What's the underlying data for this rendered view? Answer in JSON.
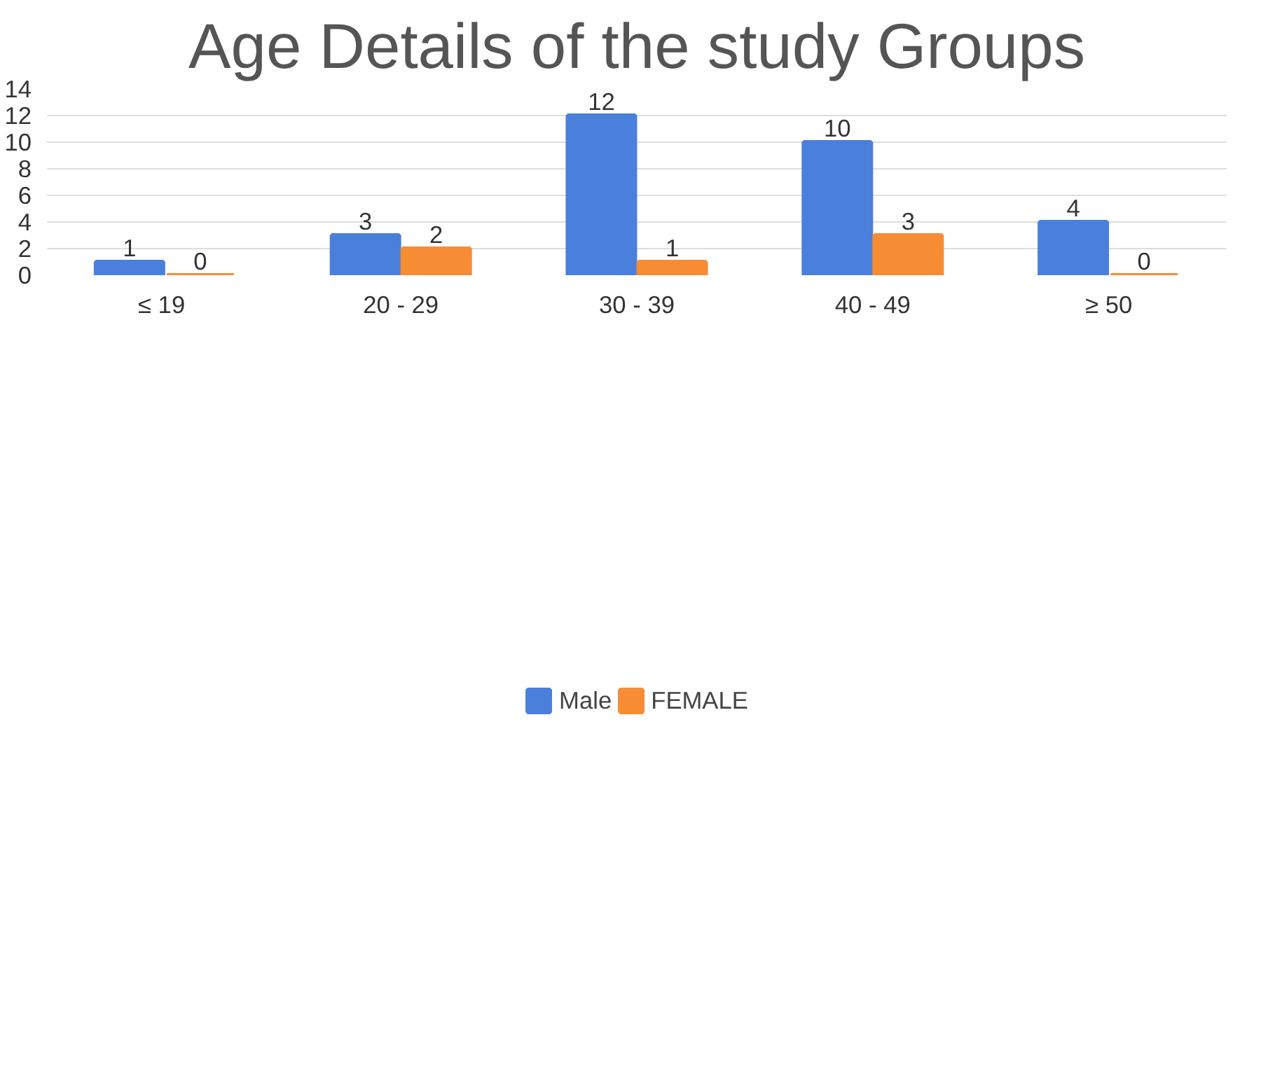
{
  "chart_data": {
    "type": "bar",
    "title": "Age Details of the study Groups",
    "categories": [
      "≤  19",
      "20 - 29",
      "30 - 39",
      "40 - 49",
      "≥ 50"
    ],
    "series": [
      {
        "name": "Male",
        "color": "#4a7fdb",
        "values": [
          1,
          3,
          12,
          10,
          4
        ]
      },
      {
        "name": "FEMALE",
        "color": "#f68c34",
        "values": [
          0,
          2,
          1,
          3,
          0
        ]
      }
    ],
    "ylim": [
      0,
      14
    ],
    "yticks": [
      0,
      2,
      4,
      6,
      8,
      10,
      12,
      14
    ],
    "grid": "y",
    "legend": "bottom",
    "data_labels": true
  }
}
